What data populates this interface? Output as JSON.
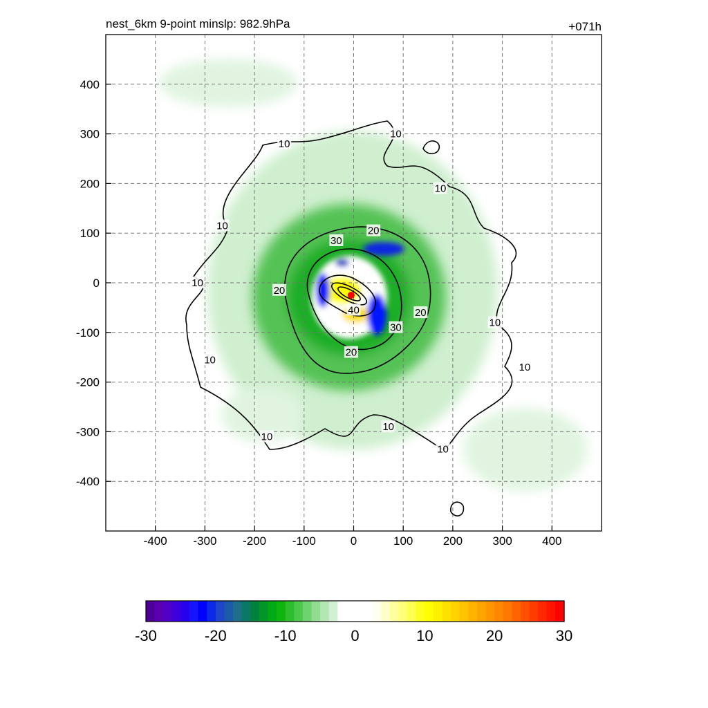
{
  "chart_data": {
    "type": "heatmap",
    "title_left": "nest_6km  9-point minslp: 982.9hPa",
    "title_right": "+071h",
    "x_range": [
      -500,
      500
    ],
    "y_range": [
      -500,
      500
    ],
    "x_ticks": [
      -400,
      -300,
      -200,
      -100,
      0,
      100,
      200,
      300,
      400
    ],
    "y_ticks": [
      -400,
      -300,
      -200,
      -100,
      0,
      100,
      200,
      300,
      400
    ],
    "x_tick_labels": [
      "-400",
      "-300",
      "-200",
      "-100",
      "0",
      "100",
      "200",
      "300",
      "400"
    ],
    "y_tick_labels": [
      "-400",
      "-300",
      "-200",
      "-100",
      "0",
      "100",
      "200",
      "300",
      "400"
    ],
    "grid": true,
    "contour_levels": [
      10,
      20,
      30,
      40
    ],
    "contour_labels": [
      {
        "text": "10",
        "x": 85,
        "y": 300
      },
      {
        "text": "10",
        "x": -140,
        "y": 280
      },
      {
        "text": "10",
        "x": 175,
        "y": 190
      },
      {
        "text": "10",
        "x": -265,
        "y": 115
      },
      {
        "text": "10",
        "x": -315,
        "y": 0
      },
      {
        "text": "10",
        "x": -290,
        "y": -155
      },
      {
        "text": "10",
        "x": -175,
        "y": -310
      },
      {
        "text": "10",
        "x": 70,
        "y": -290
      },
      {
        "text": "10",
        "x": 180,
        "y": -335
      },
      {
        "text": "10",
        "x": 285,
        "y": -80
      },
      {
        "text": "10",
        "x": 345,
        "y": -170
      },
      {
        "text": "20",
        "x": 40,
        "y": 105
      },
      {
        "text": "20",
        "x": -150,
        "y": -15
      },
      {
        "text": "20",
        "x": 135,
        "y": -60
      },
      {
        "text": "20",
        "x": -5,
        "y": -140
      },
      {
        "text": "30",
        "x": -35,
        "y": 85
      },
      {
        "text": "30",
        "x": 85,
        "y": -90
      },
      {
        "text": "40",
        "x": 0,
        "y": -55
      }
    ],
    "center_marker": {
      "x": -5,
      "y": -25,
      "color": "#ff0000"
    },
    "colorbar": {
      "ticks": [
        -30,
        -20,
        -10,
        0,
        10,
        20,
        30
      ],
      "tick_labels": [
        "-30",
        "-20",
        "-10",
        "0",
        "10",
        "20",
        "30"
      ],
      "colors": [
        "#4b0096",
        "#5a00b4",
        "#5000c8",
        "#3c00dc",
        "#2800f0",
        "#1414ff",
        "#0000ff",
        "#0a28e6",
        "#1e46c8",
        "#1e5aaa",
        "#1e6e8c",
        "#0a7864",
        "#00823c",
        "#009628",
        "#00aa14",
        "#0fb40f",
        "#2dbe2d",
        "#4bc84b",
        "#6ed26e",
        "#91dc91",
        "#b4e6b4",
        "#d2f0d2",
        "#ffffff",
        "#ffffff",
        "#ffffff",
        "#ffffff",
        "#fffff0",
        "#ffffc8",
        "#ffffa0",
        "#ffff78",
        "#ffff50",
        "#ffff1e",
        "#ffff00",
        "#fff000",
        "#ffe100",
        "#ffd200",
        "#ffc300",
        "#ffb400",
        "#ffa500",
        "#ff9600",
        "#ff8700",
        "#ff7800",
        "#ff6400",
        "#ff5000",
        "#ff3c00",
        "#ff2800",
        "#ff1400",
        "#ff0000"
      ]
    }
  }
}
